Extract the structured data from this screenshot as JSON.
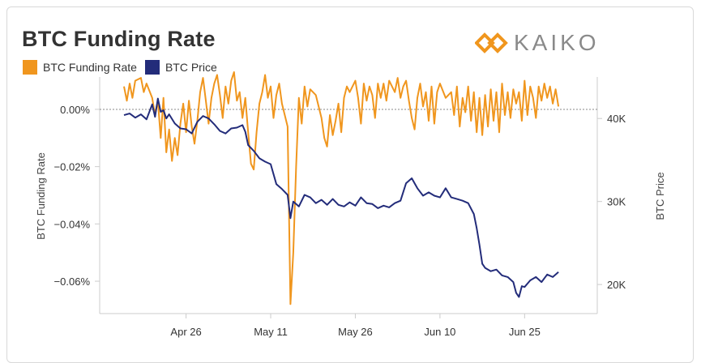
{
  "header": {
    "title": "BTC Funding Rate",
    "logo_text": "KAIKO"
  },
  "colors": {
    "funding": "#f0961e",
    "price": "#232c7a",
    "axis": "#cccccc",
    "zero_line": "#888888",
    "logo": "#f0961e"
  },
  "chart_data": {
    "type": "line",
    "title": "BTC Funding Rate",
    "legend": [
      {
        "name": "BTC Funding Rate",
        "color": "#f0961e"
      },
      {
        "name": "BTC Price",
        "color": "#232c7a"
      }
    ],
    "x_ticks": [
      "Apr 26",
      "May 11",
      "May 26",
      "Jun 10",
      "Jun 25"
    ],
    "x_range": [
      0,
      80
    ],
    "y_left": {
      "label": "BTC Funding Rate",
      "ticks": [
        "0.00%",
        "−0.02%",
        "−0.04%",
        "−0.06%"
      ],
      "tick_values": [
        0,
        -0.02,
        -0.04,
        -0.06
      ],
      "range": [
        -0.0713,
        0.0113
      ]
    },
    "y_right": {
      "label": "BTC Price",
      "ticks": [
        "40K",
        "30K",
        "20K"
      ],
      "tick_values": [
        40000,
        30000,
        20000
      ],
      "range": [
        16500,
        45000
      ]
    },
    "series": [
      {
        "name": "BTC Funding Rate",
        "axis": "left",
        "points": [
          [
            0,
            0.008
          ],
          [
            0.5,
            0.003
          ],
          [
            1,
            0.009
          ],
          [
            1.5,
            0.004
          ],
          [
            2,
            0.01
          ],
          [
            3,
            0.011
          ],
          [
            3.5,
            0.006
          ],
          [
            4,
            0.009
          ],
          [
            5,
            0.004
          ],
          [
            5.5,
            -0.002
          ],
          [
            6,
            0.003
          ],
          [
            6.5,
            -0.01
          ],
          [
            7,
            0.004
          ],
          [
            7.5,
            -0.015
          ],
          [
            8,
            -0.007
          ],
          [
            8.5,
            -0.018
          ],
          [
            9,
            -0.01
          ],
          [
            9.5,
            -0.016
          ],
          [
            10,
            -0.005
          ],
          [
            10.5,
            0.002
          ],
          [
            11,
            -0.008
          ],
          [
            11.5,
            0.003
          ],
          [
            12,
            -0.006
          ],
          [
            12.5,
            -0.012
          ],
          [
            13,
            -0.004
          ],
          [
            13.5,
            0.006
          ],
          [
            14,
            0.011
          ],
          [
            14.5,
            0.003
          ],
          [
            15,
            -0.005
          ],
          [
            15.5,
            0.004
          ],
          [
            16,
            0.009
          ],
          [
            16.5,
            0.012
          ],
          [
            17,
            0.005
          ],
          [
            17.5,
            -0.003
          ],
          [
            18,
            0.008
          ],
          [
            18.5,
            0.002
          ],
          [
            19,
            0.01
          ],
          [
            19.5,
            0.013
          ],
          [
            20,
            0.003
          ],
          [
            20.5,
            0.006
          ],
          [
            21,
            -0.003
          ],
          [
            21.5,
            0.004
          ],
          [
            22,
            -0.008
          ],
          [
            22.5,
            -0.019
          ],
          [
            23,
            -0.021
          ],
          [
            23.5,
            -0.008
          ],
          [
            24,
            0.002
          ],
          [
            24.5,
            0.006
          ],
          [
            25,
            0.012
          ],
          [
            25.5,
            0.004
          ],
          [
            26,
            0.008
          ],
          [
            26.5,
            -0.003
          ],
          [
            27,
            0.005
          ],
          [
            27.5,
            0.009
          ],
          [
            28,
            0.002
          ],
          [
            28.5,
            -0.002
          ],
          [
            29,
            -0.006
          ],
          [
            29.5,
            -0.068
          ],
          [
            30,
            -0.05
          ],
          [
            30.5,
            -0.02
          ],
          [
            31,
            0.004
          ],
          [
            31.5,
            -0.005
          ],
          [
            32,
            0.008
          ],
          [
            32.5,
            0.001
          ],
          [
            33,
            0.007
          ],
          [
            34,
            0.005
          ],
          [
            35,
            -0.003
          ],
          [
            35.5,
            -0.01
          ],
          [
            36,
            -0.013
          ],
          [
            36.5,
            -0.002
          ],
          [
            37,
            -0.009
          ],
          [
            37.5,
            -0.004
          ],
          [
            38,
            0.002
          ],
          [
            38.5,
            -0.008
          ],
          [
            39,
            0.004
          ],
          [
            39.5,
            0.008
          ],
          [
            40,
            0.006
          ],
          [
            41,
            0.01
          ],
          [
            41.5,
            0.004
          ],
          [
            42,
            -0.005
          ],
          [
            42.5,
            0.009
          ],
          [
            43,
            0.003
          ],
          [
            43.5,
            0.008
          ],
          [
            44,
            0.005
          ],
          [
            44.5,
            -0.003
          ],
          [
            45,
            0.009
          ],
          [
            45.5,
            0.004
          ],
          [
            46,
            0.009
          ],
          [
            46.5,
            0.003
          ],
          [
            47,
            0.01
          ],
          [
            48,
            0.006
          ],
          [
            48.5,
            0.011
          ],
          [
            49,
            0.004
          ],
          [
            49.5,
            0.008
          ],
          [
            50,
            0.01
          ],
          [
            50.5,
            0.003
          ],
          [
            51,
            -0.003
          ],
          [
            51.5,
            -0.007
          ],
          [
            52,
            0.004
          ],
          [
            52.5,
            0.009
          ],
          [
            53,
            0.001
          ],
          [
            53.5,
            0.006
          ],
          [
            54,
            -0.004
          ],
          [
            54.5,
            0.008
          ],
          [
            55,
            -0.005
          ],
          [
            55.5,
            0.006
          ],
          [
            56,
            0.009
          ],
          [
            57,
            0.004
          ],
          [
            58,
            0.006
          ],
          [
            58.5,
            -0.002
          ],
          [
            59,
            0.008
          ],
          [
            59.5,
            -0.006
          ],
          [
            60,
            0.004
          ],
          [
            60.5,
            -0.001
          ],
          [
            61,
            0.008
          ],
          [
            61.5,
            -0.004
          ],
          [
            62,
            0.006
          ],
          [
            62.5,
            -0.008
          ],
          [
            63,
            0.004
          ],
          [
            63.5,
            -0.009
          ],
          [
            64,
            0.005
          ],
          [
            64.5,
            -0.006
          ],
          [
            65,
            0.007
          ],
          [
            65.5,
            -0.004
          ],
          [
            66,
            0.006
          ],
          [
            66.5,
            -0.008
          ],
          [
            67,
            0.009
          ],
          [
            67.5,
            -0.002
          ],
          [
            68,
            0.006
          ],
          [
            68.5,
            -0.003
          ],
          [
            69,
            0.007
          ],
          [
            69.5,
            0.002
          ],
          [
            70,
            0.006
          ],
          [
            70.5,
            -0.004
          ],
          [
            71,
            0.01
          ],
          [
            71.5,
            -0.002
          ],
          [
            72,
            0.008
          ],
          [
            72.5,
            0.004
          ],
          [
            73,
            -0.003
          ],
          [
            73.5,
            0.008
          ],
          [
            74,
            0.003
          ],
          [
            74.5,
            0.009
          ],
          [
            75,
            0.004
          ],
          [
            75.5,
            0.008
          ],
          [
            76,
            0.002
          ],
          [
            76.5,
            0.007
          ],
          [
            77,
            0.001
          ]
        ]
      },
      {
        "name": "BTC Price",
        "axis": "right",
        "points": [
          [
            0,
            40400
          ],
          [
            1,
            40600
          ],
          [
            2,
            40100
          ],
          [
            3,
            40500
          ],
          [
            4,
            39900
          ],
          [
            5,
            41700
          ],
          [
            5.5,
            40200
          ],
          [
            6,
            42400
          ],
          [
            6.5,
            40800
          ],
          [
            7,
            41000
          ],
          [
            7.5,
            40000
          ],
          [
            8,
            40500
          ],
          [
            9,
            39400
          ],
          [
            10,
            38800
          ],
          [
            11,
            38700
          ],
          [
            12,
            38200
          ],
          [
            13,
            39600
          ],
          [
            14,
            40300
          ],
          [
            15,
            40000
          ],
          [
            16,
            39300
          ],
          [
            17,
            38500
          ],
          [
            18,
            38200
          ],
          [
            19,
            38800
          ],
          [
            20,
            38900
          ],
          [
            21,
            39200
          ],
          [
            21.5,
            38400
          ],
          [
            22,
            36800
          ],
          [
            23,
            36100
          ],
          [
            24,
            35200
          ],
          [
            25,
            34800
          ],
          [
            26,
            34500
          ],
          [
            27,
            32100
          ],
          [
            28,
            31500
          ],
          [
            29,
            30800
          ],
          [
            29.5,
            28000
          ],
          [
            30,
            30000
          ],
          [
            31,
            29400
          ],
          [
            32,
            30800
          ],
          [
            33,
            30500
          ],
          [
            34,
            29800
          ],
          [
            35,
            30200
          ],
          [
            36,
            29600
          ],
          [
            37,
            30300
          ],
          [
            38,
            29600
          ],
          [
            39,
            29400
          ],
          [
            40,
            29900
          ],
          [
            41,
            29500
          ],
          [
            42,
            30500
          ],
          [
            43,
            29800
          ],
          [
            44,
            29700
          ],
          [
            45,
            29200
          ],
          [
            46,
            29500
          ],
          [
            47,
            29300
          ],
          [
            48,
            29800
          ],
          [
            49,
            30100
          ],
          [
            50,
            32200
          ],
          [
            51,
            32800
          ],
          [
            52,
            31600
          ],
          [
            53,
            30700
          ],
          [
            54,
            31100
          ],
          [
            55,
            30700
          ],
          [
            56,
            30500
          ],
          [
            57,
            31600
          ],
          [
            58,
            30500
          ],
          [
            59,
            30300
          ],
          [
            60,
            30100
          ],
          [
            61,
            29800
          ],
          [
            62,
            28500
          ],
          [
            62.5,
            26800
          ],
          [
            63,
            24800
          ],
          [
            63.5,
            22500
          ],
          [
            64,
            22000
          ],
          [
            65,
            21600
          ],
          [
            66,
            21800
          ],
          [
            67,
            21100
          ],
          [
            68,
            20900
          ],
          [
            69,
            20300
          ],
          [
            69.5,
            19000
          ],
          [
            70,
            18500
          ],
          [
            70.5,
            19800
          ],
          [
            71,
            19700
          ],
          [
            72,
            20500
          ],
          [
            73,
            20900
          ],
          [
            74,
            20300
          ],
          [
            75,
            21200
          ],
          [
            76,
            20900
          ],
          [
            77,
            21500
          ]
        ]
      }
    ]
  }
}
